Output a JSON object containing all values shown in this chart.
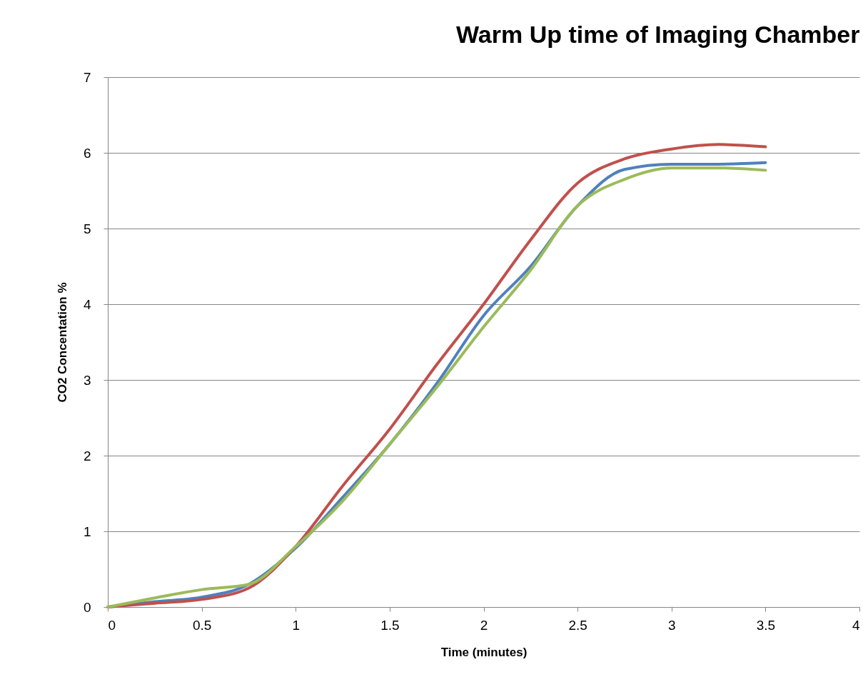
{
  "chart_data": {
    "type": "line",
    "title": "Warm Up time of Imaging Chamber",
    "xlabel": "Time (minutes)",
    "ylabel": "CO2 Concentation %",
    "x": [
      0,
      0.25,
      0.5,
      0.75,
      1,
      1.25,
      1.5,
      1.75,
      2,
      2.25,
      2.5,
      2.75,
      3,
      3.25,
      3.5
    ],
    "series": [
      {
        "color": "#4f81bd",
        "values": [
          0,
          0.07,
          0.13,
          0.3,
          0.78,
          1.45,
          2.15,
          2.95,
          3.85,
          4.5,
          5.3,
          5.78,
          5.85,
          5.85,
          5.87
        ]
      },
      {
        "color": "#c0504d",
        "values": [
          0,
          0.05,
          0.1,
          0.25,
          0.8,
          1.6,
          2.35,
          3.2,
          4.0,
          4.85,
          5.6,
          5.92,
          6.05,
          6.11,
          6.08
        ]
      },
      {
        "color": "#9bbb59",
        "values": [
          0,
          0.12,
          0.23,
          0.3,
          0.8,
          1.4,
          2.15,
          2.9,
          3.7,
          4.45,
          5.3,
          5.65,
          5.8,
          5.8,
          5.77
        ]
      }
    ],
    "xlim": [
      0,
      4
    ],
    "xticks": [
      0,
      0.5,
      1,
      1.5,
      2,
      2.5,
      3,
      3.5,
      4
    ],
    "ylim": [
      0,
      7
    ],
    "yticks": [
      0,
      1,
      2,
      3,
      4,
      5,
      6,
      7
    ],
    "grid": "y",
    "legend": false,
    "marker": "none",
    "line_style": "solid"
  }
}
